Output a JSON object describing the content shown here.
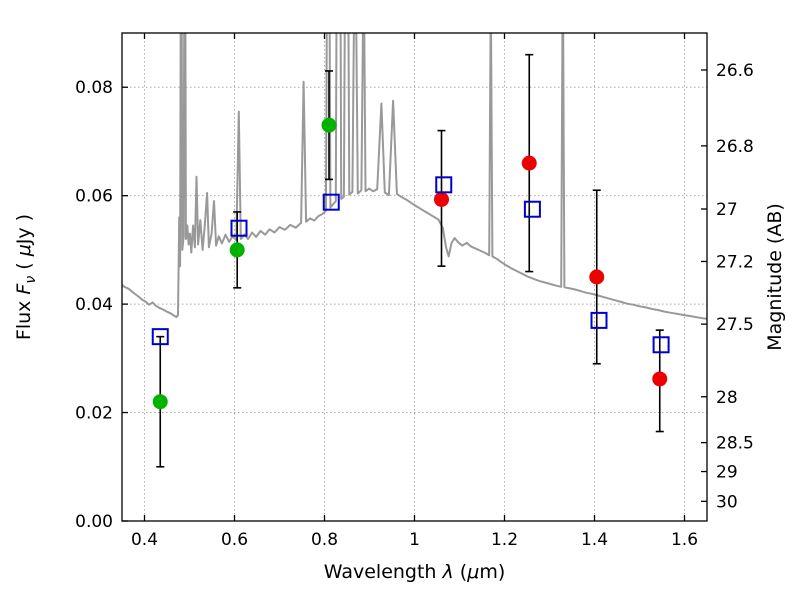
{
  "chart_data": {
    "type": "scatter",
    "subtype": "spectral-energy-distribution",
    "title": "",
    "xlabel": "Wavelength λ (μm)",
    "xlabel_rich": [
      {
        "text": "Wavelength ",
        "style": "normal"
      },
      {
        "text": "λ",
        "style": "italic"
      },
      {
        "text": " (",
        "style": "normal"
      },
      {
        "text": "μ",
        "style": "italic"
      },
      {
        "text": "m)",
        "style": "normal"
      }
    ],
    "ylabel_left": "Flux Fν ( μJy )",
    "ylabel_left_rich": [
      {
        "text": "Flux ",
        "style": "normal"
      },
      {
        "text": "F",
        "style": "italic"
      },
      {
        "text": "ν",
        "style": "italic-sub"
      },
      {
        "text": " ( ",
        "style": "normal"
      },
      {
        "text": "μ",
        "style": "italic"
      },
      {
        "text": "Jy )",
        "style": "normal"
      }
    ],
    "xlim": [
      0.35,
      1.65
    ],
    "ylim": [
      0,
      0.09
    ],
    "x_ticks": [
      0.4,
      0.6,
      0.8,
      1.0,
      1.2,
      1.4,
      1.6
    ],
    "x_tick_labels": [
      "0.4",
      "0.6",
      "0.8",
      "1",
      "1.2",
      "1.4",
      "1.6"
    ],
    "y_ticks": [
      0,
      0.02,
      0.04,
      0.06,
      0.08
    ],
    "y_tick_labels": [
      "0.00",
      "0.02",
      "0.04",
      "0.06",
      "0.08"
    ],
    "right_axis": {
      "label": "Magnitude (AB)",
      "magnitudes": [
        26.6,
        26.8,
        27,
        27.2,
        27.5,
        28,
        28.5,
        29,
        30
      ],
      "labels": [
        "26.6",
        "26.8",
        "27",
        "27.2",
        "27.5",
        "28",
        "28.5",
        "29",
        "30"
      ],
      "ab_zeropoint": 23.9
    },
    "grid": {
      "style": "dotted",
      "color": "#aaaaaa"
    },
    "colors": {
      "spectrum": "#999999",
      "green_points": "#00b300",
      "red_points": "#ee0000",
      "blue_squares": "#0000cc",
      "error_bars": "#000000",
      "frame": "#000000"
    },
    "series": [
      {
        "name": "model-spectrum",
        "type": "line",
        "color": "#999999",
        "linewidth": 2,
        "points": [
          [
            0.347,
            0.0438
          ],
          [
            0.355,
            0.0432
          ],
          [
            0.365,
            0.0428
          ],
          [
            0.375,
            0.0421
          ],
          [
            0.385,
            0.0415
          ],
          [
            0.395,
            0.0408
          ],
          [
            0.403,
            0.0404
          ],
          [
            0.41,
            0.0399
          ],
          [
            0.418,
            0.0403
          ],
          [
            0.425,
            0.0397
          ],
          [
            0.433,
            0.0393
          ],
          [
            0.441,
            0.039
          ],
          [
            0.45,
            0.0386
          ],
          [
            0.458,
            0.0383
          ],
          [
            0.465,
            0.0379
          ],
          [
            0.471,
            0.0376
          ],
          [
            0.4745,
            0.038
          ],
          [
            0.477,
            0.056
          ],
          [
            0.479,
            0.047
          ],
          [
            0.4815,
            0.13
          ],
          [
            0.484,
            0.05
          ],
          [
            0.487,
            0.0525
          ],
          [
            0.4895,
            0.14
          ],
          [
            0.492,
            0.052
          ],
          [
            0.495,
            0.0545
          ],
          [
            0.498,
            0.051
          ],
          [
            0.501,
            0.053
          ],
          [
            0.504,
            0.0495
          ],
          [
            0.508,
            0.0545
          ],
          [
            0.512,
            0.0505
          ],
          [
            0.5155,
            0.0635
          ],
          [
            0.519,
            0.051
          ],
          [
            0.524,
            0.0555
          ],
          [
            0.529,
            0.05
          ],
          [
            0.534,
            0.0545
          ],
          [
            0.539,
            0.0605
          ],
          [
            0.543,
            0.0505
          ],
          [
            0.549,
            0.053
          ],
          [
            0.5545,
            0.059
          ],
          [
            0.559,
            0.0508
          ],
          [
            0.565,
            0.0525
          ],
          [
            0.572,
            0.0512
          ],
          [
            0.58,
            0.0528
          ],
          [
            0.588,
            0.0515
          ],
          [
            0.596,
            0.0525
          ],
          [
            0.604,
            0.0518
          ],
          [
            0.6095,
            0.0755
          ],
          [
            0.614,
            0.052
          ],
          [
            0.622,
            0.0528
          ],
          [
            0.63,
            0.052
          ],
          [
            0.639,
            0.0532
          ],
          [
            0.648,
            0.0524
          ],
          [
            0.658,
            0.0535
          ],
          [
            0.668,
            0.0528
          ],
          [
            0.678,
            0.0538
          ],
          [
            0.689,
            0.0532
          ],
          [
            0.7,
            0.0542
          ],
          [
            0.712,
            0.0537
          ],
          [
            0.724,
            0.0546
          ],
          [
            0.736,
            0.0541
          ],
          [
            0.748,
            0.055
          ],
          [
            0.7535,
            0.081
          ],
          [
            0.759,
            0.0552
          ],
          [
            0.768,
            0.0558
          ],
          [
            0.777,
            0.0554
          ],
          [
            0.786,
            0.0562
          ],
          [
            0.795,
            0.0566
          ],
          [
            0.803,
            0.0572
          ],
          [
            0.8085,
            0.15
          ],
          [
            0.813,
            0.0578
          ],
          [
            0.819,
            0.0584
          ],
          [
            0.825,
            0.059
          ],
          [
            0.8315,
            0.2
          ],
          [
            0.837,
            0.0594
          ],
          [
            0.843,
            0.0598
          ],
          [
            0.849,
            0.16
          ],
          [
            0.855,
            0.0602
          ],
          [
            0.862,
            0.0607
          ],
          [
            0.868,
            0.115
          ],
          [
            0.874,
            0.0604
          ],
          [
            0.882,
            0.061
          ],
          [
            0.887,
            0.105
          ],
          [
            0.891,
            0.0608
          ],
          [
            0.899,
            0.0613
          ],
          [
            0.908,
            0.0608
          ],
          [
            0.917,
            0.0612
          ],
          [
            0.9265,
            0.077
          ],
          [
            0.934,
            0.0606
          ],
          [
            0.943,
            0.0601
          ],
          [
            0.9525,
            0.0775
          ],
          [
            0.961,
            0.0603
          ],
          [
            0.972,
            0.0597
          ],
          [
            0.983,
            0.0592
          ],
          [
            0.994,
            0.0586
          ],
          [
            1.005,
            0.058
          ],
          [
            1.017,
            0.0574
          ],
          [
            1.029,
            0.0568
          ],
          [
            1.041,
            0.0562
          ],
          [
            1.053,
            0.0556
          ],
          [
            1.063,
            0.054
          ],
          [
            1.07,
            0.0505
          ],
          [
            1.076,
            0.0488
          ],
          [
            1.082,
            0.0512
          ],
          [
            1.089,
            0.0522
          ],
          [
            1.097,
            0.0514
          ],
          [
            1.106,
            0.0508
          ],
          [
            1.116,
            0.0513
          ],
          [
            1.126,
            0.0506
          ],
          [
            1.137,
            0.0502
          ],
          [
            1.148,
            0.0498
          ],
          [
            1.158,
            0.0494
          ],
          [
            1.166,
            0.049
          ],
          [
            1.1695,
            0.098
          ],
          [
            1.173,
            0.0488
          ],
          [
            1.182,
            0.0484
          ],
          [
            1.192,
            0.0478
          ],
          [
            1.203,
            0.0472
          ],
          [
            1.215,
            0.0466
          ],
          [
            1.227,
            0.0461
          ],
          [
            1.239,
            0.0456
          ],
          [
            1.251,
            0.0451
          ],
          [
            1.263,
            0.0447
          ],
          [
            1.276,
            0.0443
          ],
          [
            1.289,
            0.044
          ],
          [
            1.302,
            0.0437
          ],
          [
            1.315,
            0.0434
          ],
          [
            1.326,
            0.0432
          ],
          [
            1.3295,
            0.105
          ],
          [
            1.333,
            0.0431
          ],
          [
            1.345,
            0.0429
          ],
          [
            1.357,
            0.0427
          ],
          [
            1.369,
            0.0424
          ],
          [
            1.381,
            0.0421
          ],
          [
            1.394,
            0.0419
          ],
          [
            1.407,
            0.0416
          ],
          [
            1.42,
            0.0413
          ],
          [
            1.433,
            0.041
          ],
          [
            1.446,
            0.0407
          ],
          [
            1.459,
            0.0404
          ],
          [
            1.472,
            0.0401
          ],
          [
            1.486,
            0.0399
          ],
          [
            1.5,
            0.0396
          ],
          [
            1.514,
            0.0394
          ],
          [
            1.528,
            0.0391
          ],
          [
            1.542,
            0.0389
          ],
          [
            1.556,
            0.0386
          ],
          [
            1.57,
            0.0384
          ],
          [
            1.584,
            0.0382
          ],
          [
            1.598,
            0.038
          ],
          [
            1.612,
            0.0378
          ],
          [
            1.626,
            0.0376
          ],
          [
            1.64,
            0.0374
          ],
          [
            1.65,
            0.0373
          ]
        ]
      },
      {
        "name": "observed-photometry-green",
        "type": "scatter",
        "marker": "circle",
        "color": "#00b300",
        "points": [
          {
            "x": 0.435,
            "y": 0.022,
            "yerr_minus": 0.012,
            "yerr_plus": 0.012
          },
          {
            "x": 0.606,
            "y": 0.05,
            "yerr_minus": 0.007,
            "yerr_plus": 0.007
          },
          {
            "x": 0.81,
            "y": 0.073,
            "yerr_minus": 0.01,
            "yerr_plus": 0.01
          }
        ]
      },
      {
        "name": "observed-photometry-red",
        "type": "scatter",
        "marker": "circle",
        "color": "#ee0000",
        "points": [
          {
            "x": 1.06,
            "y": 0.0593,
            "yerr_minus": 0.0123,
            "yerr_plus": 0.0127
          },
          {
            "x": 1.255,
            "y": 0.066,
            "yerr_minus": 0.02,
            "yerr_plus": 0.02
          },
          {
            "x": 1.405,
            "y": 0.045,
            "yerr_minus": 0.016,
            "yerr_plus": 0.016
          },
          {
            "x": 1.545,
            "y": 0.0262,
            "yerr_minus": 0.0097,
            "yerr_plus": 0.009
          }
        ]
      },
      {
        "name": "model-photometry-squares",
        "type": "scatter",
        "marker": "open-square",
        "color": "#0000cc",
        "points": [
          {
            "x": 0.435,
            "y": 0.034
          },
          {
            "x": 0.61,
            "y": 0.054
          },
          {
            "x": 0.815,
            "y": 0.0588
          },
          {
            "x": 1.065,
            "y": 0.062
          },
          {
            "x": 1.262,
            "y": 0.0575
          },
          {
            "x": 1.41,
            "y": 0.037
          },
          {
            "x": 1.548,
            "y": 0.0325
          }
        ]
      }
    ]
  }
}
